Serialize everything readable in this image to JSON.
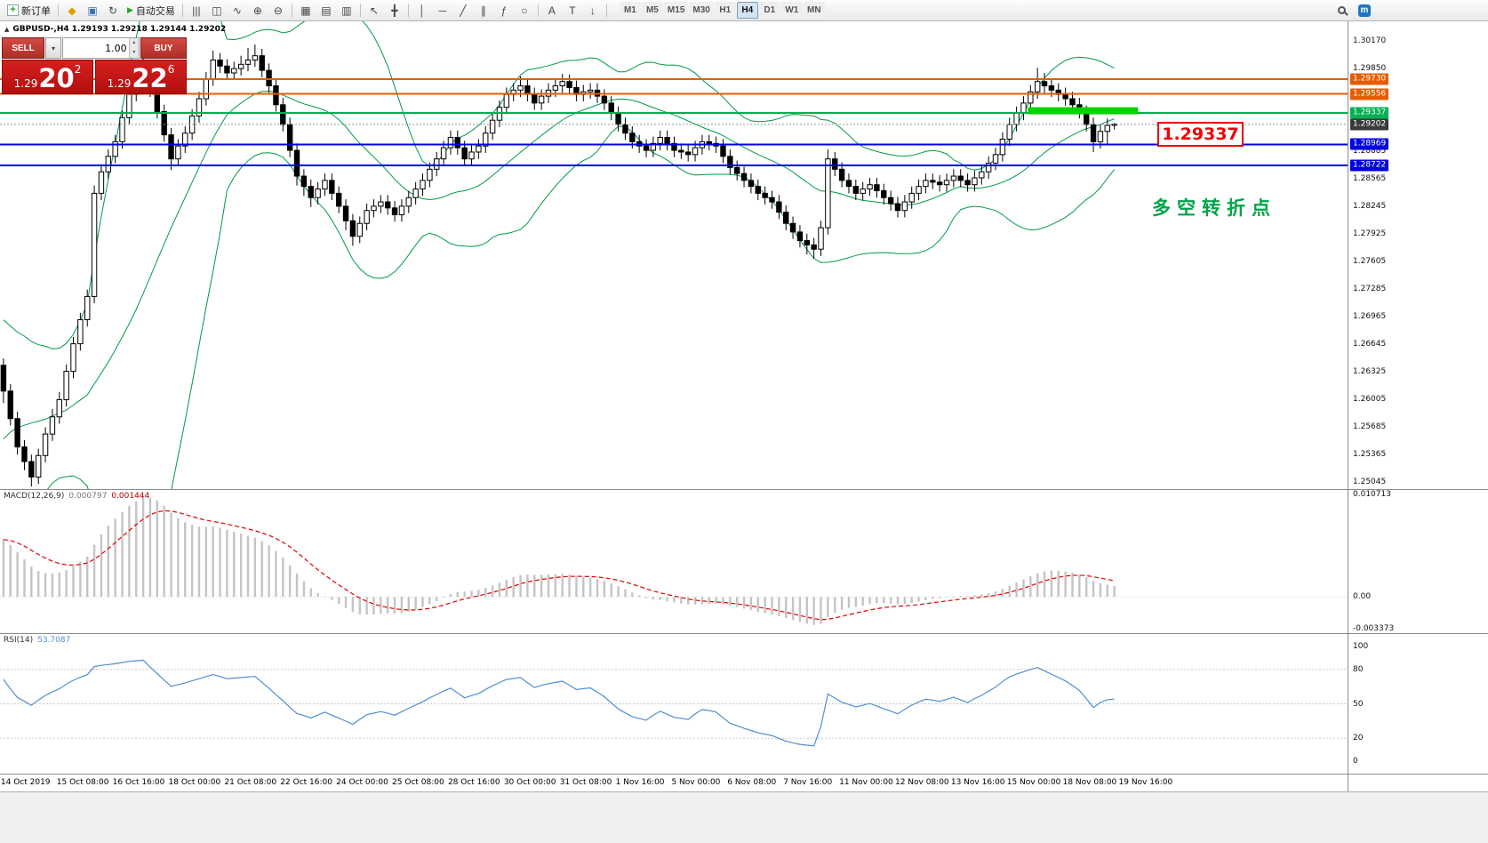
{
  "toolbar": {
    "new_order_label": "新订单",
    "auto_trading_label": "自动交易",
    "timeframes": [
      "M1",
      "M5",
      "M15",
      "M30",
      "H1",
      "H4",
      "D1",
      "W1",
      "MN"
    ],
    "active_timeframe": "H4"
  },
  "icons": {
    "new_order_plus": "+",
    "mql": "◆",
    "profile": "▣",
    "refresh": "↻",
    "play": "▶",
    "bars_chart": "|||",
    "candles_chart": "◫",
    "line_chart": "∿",
    "zoom_in": "⊕",
    "zoom_out": "⊖",
    "new_chart_grid": "▦",
    "tile_windows": "▤",
    "cascade_windows": "▥",
    "cursor": "↖",
    "crosshair": "╋",
    "vertical_line": "│",
    "horizontal_line": "─",
    "trendline": "╱",
    "channel": "∥",
    "fibonacci": "ƒ",
    "ellipse": "○",
    "text": "A",
    "label": "T",
    "arrow": "↓",
    "community": "m",
    "dropdown": "▾",
    "spin_up": "▴",
    "spin_down": "▾",
    "panel_collapse": "▲"
  },
  "trade_panel": {
    "sell_label": "SELL",
    "buy_label": "BUY",
    "volume": "1.00",
    "sell_price_small": "1.29",
    "sell_price_big": "20",
    "sell_price_sup": "2",
    "buy_price_small": "1.29",
    "buy_price_big": "22",
    "buy_price_sup": "6"
  },
  "chart_data": {
    "type": "candlestick",
    "symbol": "GBPUSD-",
    "timeframe": "H4",
    "symbol_ohlc_line": "GBPUSD-,H4  1.29193 1.29218 1.29144 1.29202",
    "ohlc_display": {
      "open": "1.29193",
      "high": "1.29218",
      "low": "1.29144",
      "close": "1.29202"
    },
    "axis_range": {
      "max": 1.304,
      "min": 1.2496
    },
    "y_ticks": [
      "1.30170",
      "1.29850",
      "1.28885",
      "1.28565",
      "1.28245",
      "1.27925",
      "1.27605",
      "1.27285",
      "1.26965",
      "1.26645",
      "1.26325",
      "1.26005",
      "1.25685",
      "1.25365",
      "1.25045"
    ],
    "x_labels": [
      "14 Oct 2019",
      "15 Oct 08:00",
      "16 Oct 16:00",
      "18 Oct 00:00",
      "21 Oct 08:00",
      "22 Oct 16:00",
      "24 Oct 00:00",
      "25 Oct 08:00",
      "28 Oct 16:00",
      "30 Oct 00:00",
      "31 Oct 08:00",
      "1 Nov 16:00",
      "5 Nov 00:00",
      "6 Nov 08:00",
      "7 Nov 16:00",
      "11 Nov 00:00",
      "12 Nov 08:00",
      "13 Nov 16:00",
      "15 Nov 00:00",
      "18 Nov 08:00",
      "19 Nov 16:00"
    ],
    "x_label_step": 8,
    "bollinger": {
      "period": 20,
      "deviation": 2,
      "color": "#009a46"
    },
    "hlines": [
      {
        "price": 1.2973,
        "label": "1.29730",
        "color": "#e65c00"
      },
      {
        "price": 1.29556,
        "label": "1.29556",
        "color": "#e65c00"
      },
      {
        "price": 1.29337,
        "label": "1.29337",
        "color": "#00b050"
      },
      {
        "price": 1.28969,
        "label": "1.28969",
        "color": "#0000e0"
      },
      {
        "price": 1.28722,
        "label": "1.28722",
        "color": "#0000e0"
      }
    ],
    "current_price": {
      "value": 1.29202,
      "label": "1.29202",
      "tag_color": "#3a3a3a"
    },
    "highlight_bar": {
      "start_bar": 147,
      "end_bar": 162,
      "price": 1.2936,
      "thickness": 8,
      "color": "#00d300"
    },
    "annotations": {
      "price_callout": "1.29337",
      "turning_point": "多空转折点"
    },
    "warmup_closes": [
      1.23,
      1.231,
      1.2295,
      1.232,
      1.2345,
      1.2335,
      1.236,
      1.2385,
      1.2375,
      1.24,
      1.2425,
      1.2415,
      1.2445,
      1.247,
      1.246,
      1.249,
      1.2515,
      1.2505,
      1.2535,
      1.256,
      1.255,
      1.2575,
      1.26,
      1.259,
      1.261,
      1.2625,
      1.2615,
      1.263,
      1.2645,
      1.264
    ],
    "candles_format": "open,high,low,close",
    "candles": [
      [
        1.264,
        1.2648,
        1.2596,
        1.261
      ],
      [
        1.261,
        1.2618,
        1.257,
        1.2578
      ],
      [
        1.2578,
        1.2586,
        1.2536,
        1.2545
      ],
      [
        1.2545,
        1.2553,
        1.2518,
        1.2528
      ],
      [
        1.2528,
        1.2536,
        1.2499,
        1.251
      ],
      [
        1.251,
        1.2543,
        1.2502,
        1.2535
      ],
      [
        1.2535,
        1.2568,
        1.2527,
        1.256
      ],
      [
        1.256,
        1.2589,
        1.2552,
        1.258
      ],
      [
        1.258,
        1.2609,
        1.2572,
        1.26
      ],
      [
        1.26,
        1.2641,
        1.2592,
        1.2633
      ],
      [
        1.2633,
        1.2673,
        1.2625,
        1.2665
      ],
      [
        1.2665,
        1.2701,
        1.2657,
        1.2693
      ],
      [
        1.2693,
        1.2728,
        1.2685,
        1.272
      ],
      [
        1.272,
        1.2849,
        1.2712,
        1.284
      ],
      [
        1.284,
        1.2874,
        1.2832,
        1.2865
      ],
      [
        1.2865,
        1.2891,
        1.2857,
        1.2883
      ],
      [
        1.2883,
        1.2908,
        1.2875,
        1.29
      ],
      [
        1.29,
        1.2936,
        1.2892,
        1.2928
      ],
      [
        1.2928,
        1.2963,
        1.292,
        1.2955
      ],
      [
        1.2955,
        1.2978,
        1.2947,
        1.297
      ],
      [
        1.297,
        1.2999,
        1.2962,
        1.2985
      ],
      [
        1.2985,
        1.2993,
        1.2952,
        1.296
      ],
      [
        1.296,
        1.2968,
        1.2927,
        1.2935
      ],
      [
        1.2935,
        1.2943,
        1.29,
        1.2908
      ],
      [
        1.2908,
        1.2916,
        1.2867,
        1.288
      ],
      [
        1.288,
        1.2903,
        1.2872,
        1.2895
      ],
      [
        1.2895,
        1.2918,
        1.2887,
        1.291
      ],
      [
        1.291,
        1.2938,
        1.2902,
        1.293
      ],
      [
        1.293,
        1.2958,
        1.2922,
        1.295
      ],
      [
        1.295,
        1.2981,
        1.2942,
        1.2973
      ],
      [
        1.2973,
        1.3006,
        1.2965,
        1.2995
      ],
      [
        1.2995,
        1.3003,
        1.298,
        1.2988
      ],
      [
        1.2988,
        1.2996,
        1.2972,
        1.298
      ],
      [
        1.298,
        1.2993,
        1.2972,
        1.2985
      ],
      [
        1.2985,
        1.3,
        1.2977,
        1.299
      ],
      [
        1.299,
        1.3009,
        1.2982,
        1.2995
      ],
      [
        1.2995,
        1.3013,
        1.2987,
        1.3
      ],
      [
        1.3,
        1.3008,
        1.2975,
        1.2983
      ],
      [
        1.2983,
        1.2991,
        1.2957,
        1.2965
      ],
      [
        1.2965,
        1.2973,
        1.2935,
        1.2943
      ],
      [
        1.2943,
        1.2951,
        1.2912,
        1.292
      ],
      [
        1.292,
        1.2928,
        1.2882,
        1.289
      ],
      [
        1.289,
        1.2898,
        1.2849,
        1.286
      ],
      [
        1.286,
        1.2868,
        1.2837,
        1.2848
      ],
      [
        1.2848,
        1.2856,
        1.2824,
        1.2835
      ],
      [
        1.2835,
        1.2853,
        1.2827,
        1.2845
      ],
      [
        1.2845,
        1.2863,
        1.2837,
        1.2855
      ],
      [
        1.2855,
        1.2863,
        1.2832,
        1.284
      ],
      [
        1.284,
        1.2848,
        1.2817,
        1.2825
      ],
      [
        1.2825,
        1.2833,
        1.2797,
        1.2808
      ],
      [
        1.2808,
        1.2816,
        1.2779,
        1.279
      ],
      [
        1.279,
        1.2813,
        1.2782,
        1.2805
      ],
      [
        1.2805,
        1.2828,
        1.2797,
        1.282
      ],
      [
        1.282,
        1.2833,
        1.2812,
        1.2825
      ],
      [
        1.2825,
        1.2838,
        1.2817,
        1.283
      ],
      [
        1.283,
        1.2838,
        1.2815,
        1.2823
      ],
      [
        1.2823,
        1.2831,
        1.2807,
        1.2815
      ],
      [
        1.2815,
        1.2833,
        1.2807,
        1.2825
      ],
      [
        1.2825,
        1.2843,
        1.2817,
        1.2835
      ],
      [
        1.2835,
        1.2853,
        1.2827,
        1.2845
      ],
      [
        1.2845,
        1.2863,
        1.2837,
        1.2855
      ],
      [
        1.2855,
        1.2876,
        1.2847,
        1.2868
      ],
      [
        1.2868,
        1.2888,
        1.286,
        1.288
      ],
      [
        1.288,
        1.2901,
        1.2872,
        1.2893
      ],
      [
        1.2893,
        1.2913,
        1.2885,
        1.2905
      ],
      [
        1.2905,
        1.2913,
        1.2885,
        1.2893
      ],
      [
        1.2893,
        1.2901,
        1.2872,
        1.288
      ],
      [
        1.288,
        1.2896,
        1.2872,
        1.2888
      ],
      [
        1.2888,
        1.2903,
        1.288,
        1.2895
      ],
      [
        1.2895,
        1.2918,
        1.2887,
        1.291
      ],
      [
        1.291,
        1.2933,
        1.2902,
        1.2925
      ],
      [
        1.2925,
        1.2948,
        1.2917,
        1.294
      ],
      [
        1.294,
        1.2963,
        1.2932,
        1.2955
      ],
      [
        1.2955,
        1.2968,
        1.2947,
        1.296
      ],
      [
        1.296,
        1.2976,
        1.2952,
        1.2965
      ],
      [
        1.2965,
        1.2973,
        1.2947,
        1.2955
      ],
      [
        1.2955,
        1.2963,
        1.2937,
        1.2945
      ],
      [
        1.2945,
        1.2961,
        1.2937,
        1.2953
      ],
      [
        1.2953,
        1.2968,
        1.2945,
        1.296
      ],
      [
        1.296,
        1.2973,
        1.2952,
        1.2965
      ],
      [
        1.2965,
        1.2979,
        1.2957,
        1.297
      ],
      [
        1.297,
        1.2978,
        1.2955,
        1.2963
      ],
      [
        1.2963,
        1.2971,
        1.2947,
        1.2955
      ],
      [
        1.2955,
        1.2966,
        1.2947,
        1.2958
      ],
      [
        1.2958,
        1.2968,
        1.295,
        1.296
      ],
      [
        1.296,
        1.2968,
        1.2945,
        1.2953
      ],
      [
        1.2953,
        1.2961,
        1.2937,
        1.2945
      ],
      [
        1.2945,
        1.2953,
        1.2925,
        1.2933
      ],
      [
        1.2933,
        1.2941,
        1.2912,
        1.292
      ],
      [
        1.292,
        1.2928,
        1.2902,
        1.291
      ],
      [
        1.291,
        1.2918,
        1.2892,
        1.29
      ],
      [
        1.29,
        1.2908,
        1.2887,
        1.2895
      ],
      [
        1.2895,
        1.2903,
        1.2882,
        1.289
      ],
      [
        1.289,
        1.2906,
        1.2882,
        1.2898
      ],
      [
        1.2898,
        1.2913,
        1.289,
        1.2905
      ],
      [
        1.2905,
        1.2913,
        1.289,
        1.2898
      ],
      [
        1.2898,
        1.2906,
        1.2882,
        1.289
      ],
      [
        1.289,
        1.2898,
        1.288,
        1.2888
      ],
      [
        1.2888,
        1.2896,
        1.2877,
        1.2885
      ],
      [
        1.2885,
        1.2901,
        1.2877,
        1.2893
      ],
      [
        1.2893,
        1.2908,
        1.2885,
        1.29
      ],
      [
        1.29,
        1.2908,
        1.289,
        1.2898
      ],
      [
        1.2898,
        1.2906,
        1.2887,
        1.2895
      ],
      [
        1.2895,
        1.2903,
        1.2875,
        1.2883
      ],
      [
        1.2883,
        1.2891,
        1.2862,
        1.287
      ],
      [
        1.287,
        1.2878,
        1.2855,
        1.2863
      ],
      [
        1.2863,
        1.2871,
        1.2847,
        1.2855
      ],
      [
        1.2855,
        1.2863,
        1.284,
        1.2848
      ],
      [
        1.2848,
        1.2856,
        1.2832,
        1.284
      ],
      [
        1.284,
        1.2848,
        1.2827,
        1.2835
      ],
      [
        1.2835,
        1.2843,
        1.2822,
        1.283
      ],
      [
        1.283,
        1.2838,
        1.281,
        1.2818
      ],
      [
        1.2818,
        1.2826,
        1.2797,
        1.2805
      ],
      [
        1.2805,
        1.2813,
        1.2787,
        1.2795
      ],
      [
        1.2795,
        1.2803,
        1.2777,
        1.2785
      ],
      [
        1.2785,
        1.2793,
        1.2769,
        1.278
      ],
      [
        1.278,
        1.2788,
        1.2764,
        1.2775
      ],
      [
        1.2775,
        1.2808,
        1.2767,
        1.28
      ],
      [
        1.28,
        1.2891,
        1.2792,
        1.288
      ],
      [
        1.288,
        1.2888,
        1.286,
        1.2868
      ],
      [
        1.2868,
        1.2876,
        1.2847,
        1.2855
      ],
      [
        1.2855,
        1.2863,
        1.284,
        1.2848
      ],
      [
        1.2848,
        1.2856,
        1.2832,
        1.284
      ],
      [
        1.284,
        1.2853,
        1.2832,
        1.2845
      ],
      [
        1.2845,
        1.2858,
        1.2837,
        1.285
      ],
      [
        1.285,
        1.2858,
        1.2835,
        1.2843
      ],
      [
        1.2843,
        1.2851,
        1.2827,
        1.2835
      ],
      [
        1.2835,
        1.2843,
        1.282,
        1.2828
      ],
      [
        1.2828,
        1.2836,
        1.2812,
        1.282
      ],
      [
        1.282,
        1.2838,
        1.2812,
        1.283
      ],
      [
        1.283,
        1.2848,
        1.2822,
        1.284
      ],
      [
        1.284,
        1.2856,
        1.2832,
        1.2848
      ],
      [
        1.2848,
        1.2863,
        1.284,
        1.2855
      ],
      [
        1.2855,
        1.2863,
        1.2845,
        1.2853
      ],
      [
        1.2853,
        1.2861,
        1.2842,
        1.285
      ],
      [
        1.285,
        1.2863,
        1.2842,
        1.2855
      ],
      [
        1.2855,
        1.2868,
        1.2847,
        1.286
      ],
      [
        1.286,
        1.2868,
        1.2847,
        1.2855
      ],
      [
        1.2855,
        1.2863,
        1.2842,
        1.285
      ],
      [
        1.285,
        1.2866,
        1.2842,
        1.2858
      ],
      [
        1.2858,
        1.2873,
        1.285,
        1.2865
      ],
      [
        1.2865,
        1.2883,
        1.2857,
        1.2875
      ],
      [
        1.2875,
        1.2893,
        1.2867,
        1.2885
      ],
      [
        1.2885,
        1.2911,
        1.2877,
        1.2903
      ],
      [
        1.2903,
        1.2928,
        1.2895,
        1.292
      ],
      [
        1.292,
        1.2941,
        1.2912,
        1.2933
      ],
      [
        1.2933,
        1.2953,
        1.2925,
        1.2945
      ],
      [
        1.2945,
        1.2966,
        1.2937,
        1.2958
      ],
      [
        1.2958,
        1.2986,
        1.295,
        1.297
      ],
      [
        1.297,
        1.298,
        1.2957,
        1.2965
      ],
      [
        1.2965,
        1.2973,
        1.2952,
        1.296
      ],
      [
        1.296,
        1.2968,
        1.2947,
        1.2955
      ],
      [
        1.2955,
        1.2963,
        1.2942,
        1.295
      ],
      [
        1.295,
        1.2958,
        1.2935,
        1.2943
      ],
      [
        1.2943,
        1.2951,
        1.2927,
        1.2935
      ],
      [
        1.2935,
        1.2942,
        1.2912,
        1.292
      ],
      [
        1.292,
        1.2928,
        1.2888,
        1.29
      ],
      [
        1.29,
        1.292,
        1.2892,
        1.2912
      ],
      [
        1.2912,
        1.2927,
        1.2897,
        1.2919
      ],
      [
        1.29193,
        1.29218,
        1.29144,
        1.29202
      ]
    ],
    "macd": {
      "title": "MACD(12,26,9)",
      "value_main": "0.000797",
      "value_signal": "0.001444",
      "fast": 12,
      "slow": 26,
      "signal": 9,
      "plot_max": 0.0112,
      "plot_min": -0.0038,
      "axis_labels": [
        {
          "text": "0.010713",
          "value": 0.010713
        },
        {
          "text": "0.00",
          "value": 0
        },
        {
          "text": "-0.003373",
          "value": -0.003373
        }
      ],
      "histogram_color": "#c4c4c4",
      "signal_color": "#e00000"
    },
    "rsi": {
      "title": "RSI(14)",
      "value": "53.7087",
      "period": 14,
      "levels": [
        80,
        50,
        20
      ],
      "axis_labels": [
        {
          "text": "100",
          "value": 100
        },
        {
          "text": "80",
          "value": 80
        },
        {
          "text": "50",
          "value": 50
        },
        {
          "text": "20",
          "value": 20
        },
        {
          "text": "0",
          "value": 0
        }
      ],
      "color": "#4f8fd2",
      "level_color": "#c8c8c8"
    }
  }
}
